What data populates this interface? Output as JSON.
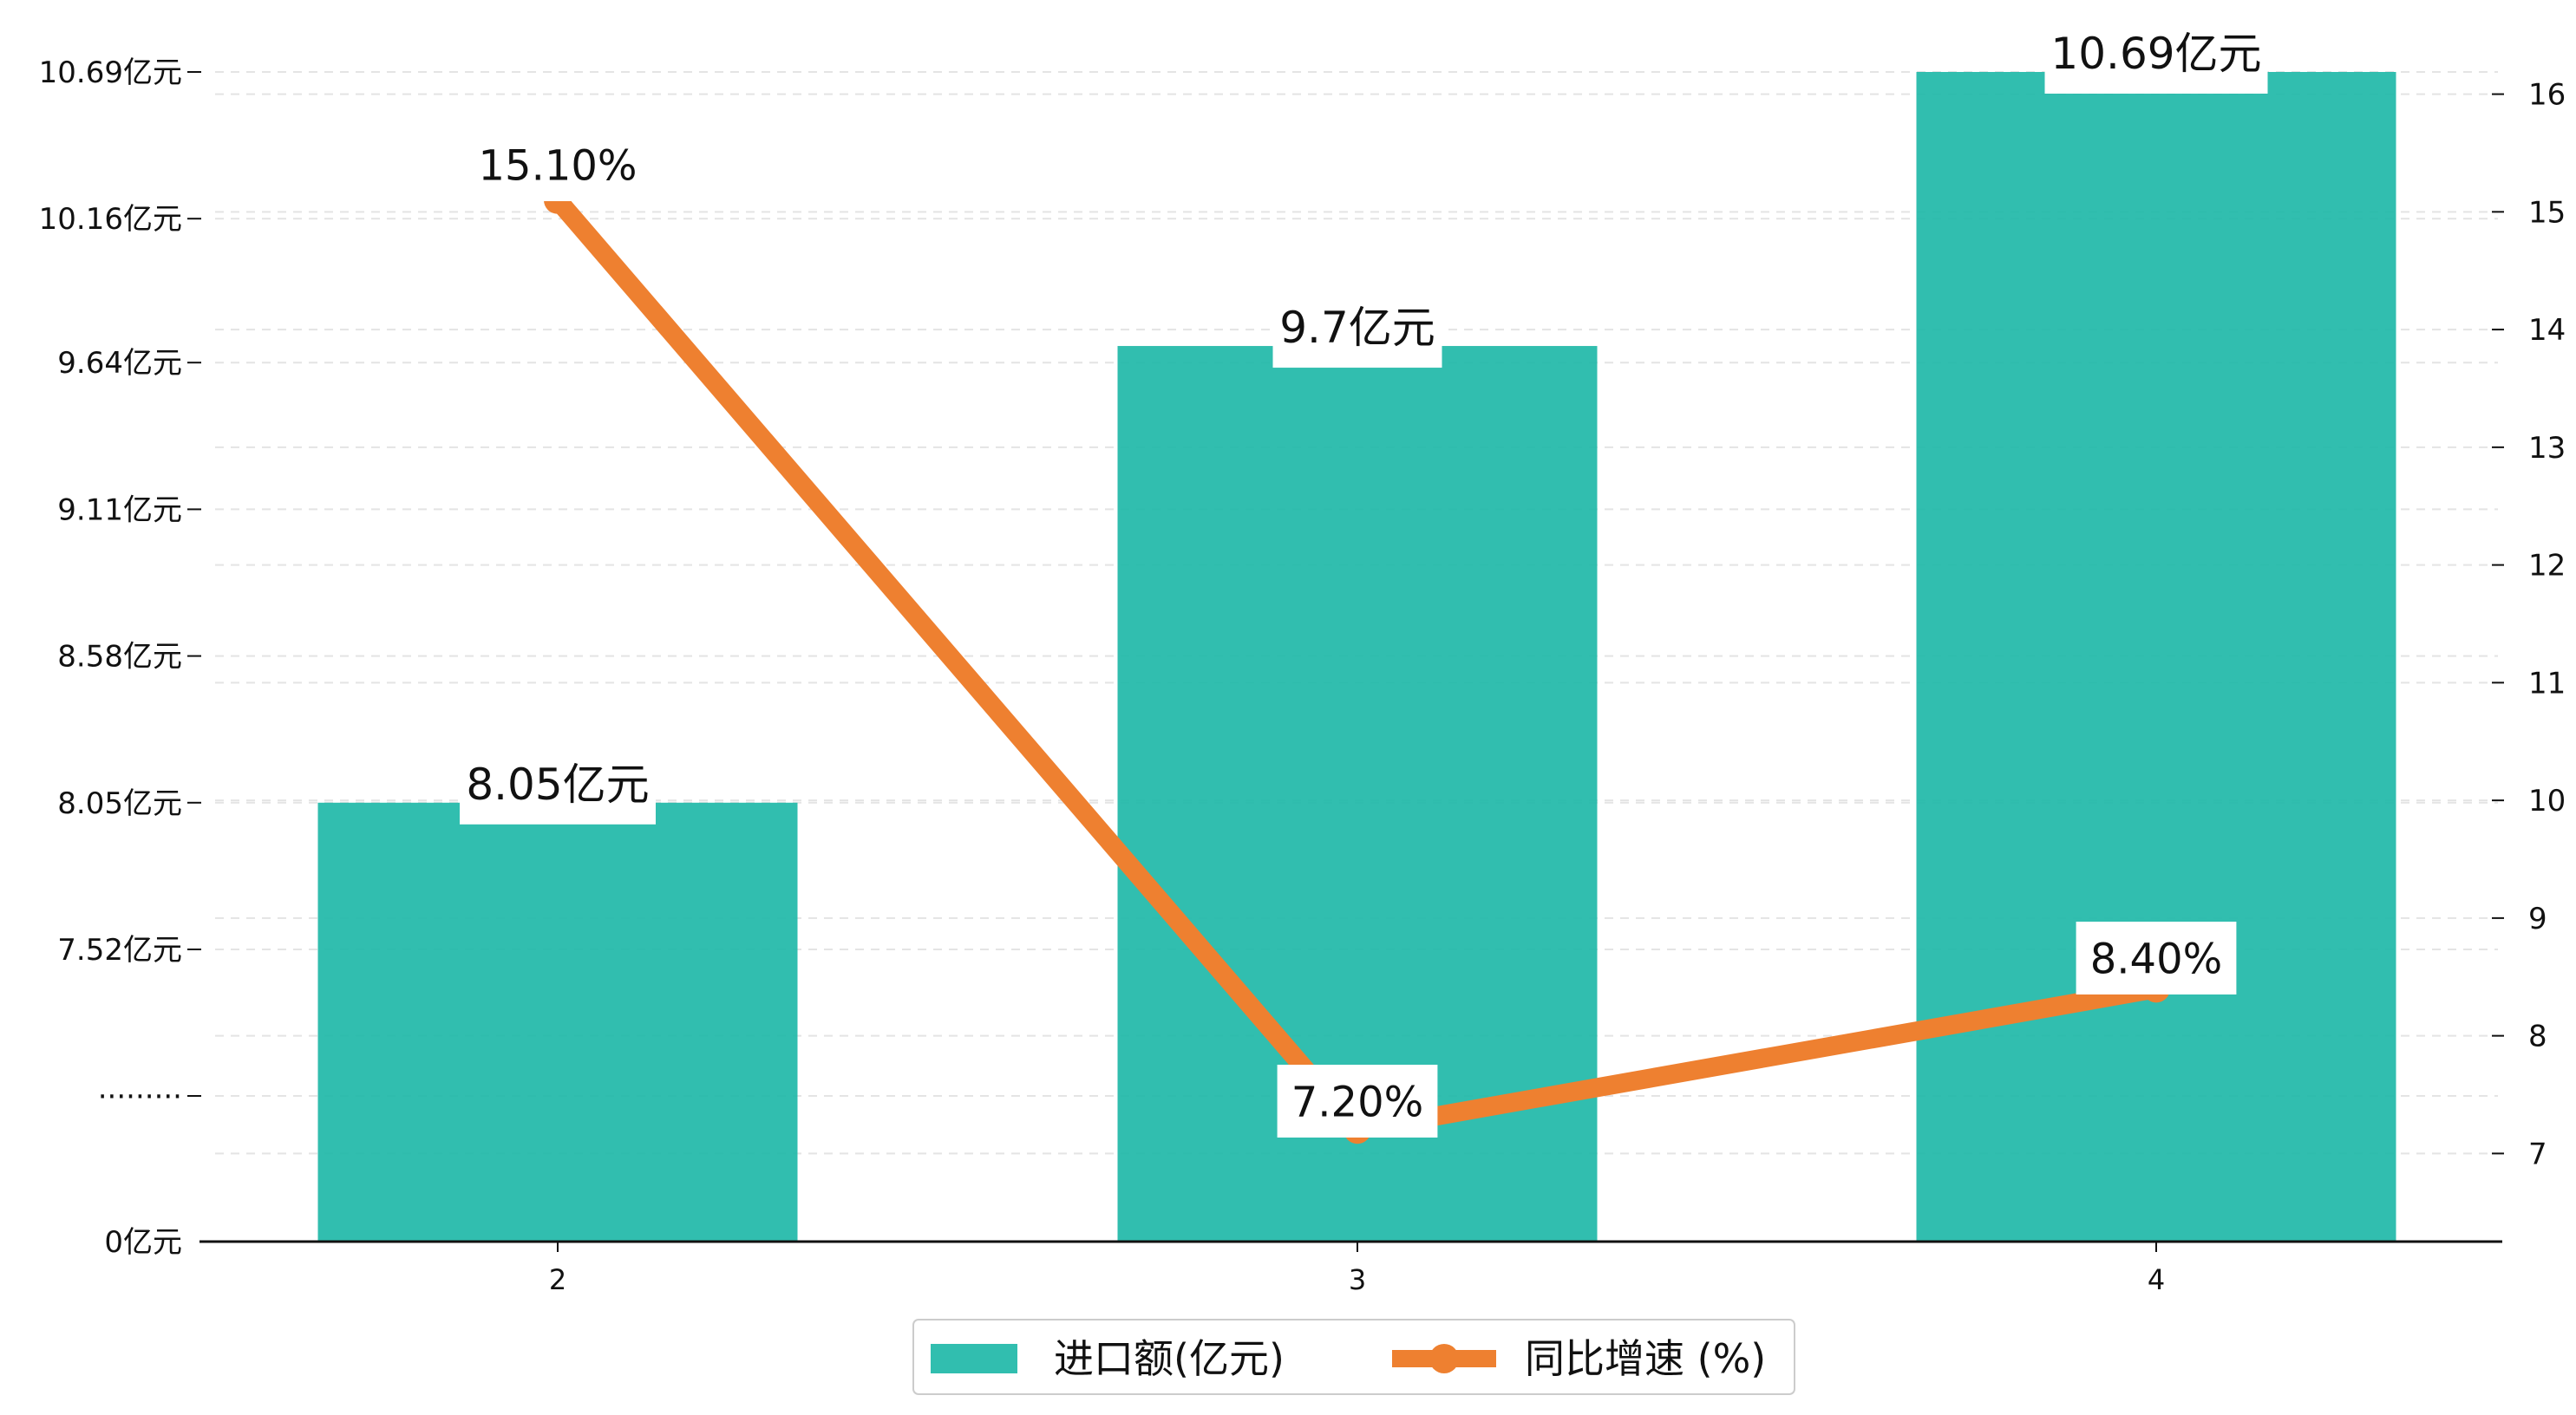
{
  "chart_data": {
    "type": "bar",
    "categories": [
      "2",
      "3",
      "4"
    ],
    "series": [
      {
        "name": "进口额(亿元)",
        "chart": "bar",
        "axis": "left",
        "values": [
          8.05,
          9.7,
          10.69
        ],
        "labels": [
          "8.05亿元",
          "9.7亿元",
          "10.69亿元"
        ],
        "color": "#1fb8a8"
      },
      {
        "name": "同比增速 (%)",
        "chart": "line",
        "axis": "right",
        "values": [
          15.1,
          7.2,
          8.4
        ],
        "labels": [
          "15.10%",
          "7.20%",
          "8.40%"
        ],
        "color": "#ee8030"
      }
    ],
    "y_left": {
      "ticks": [
        {
          "value": 0,
          "label": "0亿元"
        },
        {
          "value": 7.0,
          "label": "·········"
        },
        {
          "value": 7.52,
          "label": "7.52亿元"
        },
        {
          "value": 8.05,
          "label": "8.05亿元"
        },
        {
          "value": 8.58,
          "label": "8.58亿元"
        },
        {
          "value": 9.11,
          "label": "9.11亿元"
        },
        {
          "value": 9.64,
          "label": "9.64亿元"
        },
        {
          "value": 10.16,
          "label": "10.16亿元"
        },
        {
          "value": 10.69,
          "label": "10.69亿元"
        }
      ],
      "broken_axis": true
    },
    "y_right": {
      "ylim": [
        6.2,
        16.1
      ],
      "ticks": [
        7,
        8,
        9,
        10,
        11,
        12,
        13,
        14,
        15,
        16
      ]
    },
    "grid": "horizontal-dashed",
    "legend": "bottom-center"
  },
  "legend": {
    "items": [
      {
        "label": "进口额(亿元)"
      },
      {
        "label": "同比增速 (%)"
      }
    ]
  }
}
